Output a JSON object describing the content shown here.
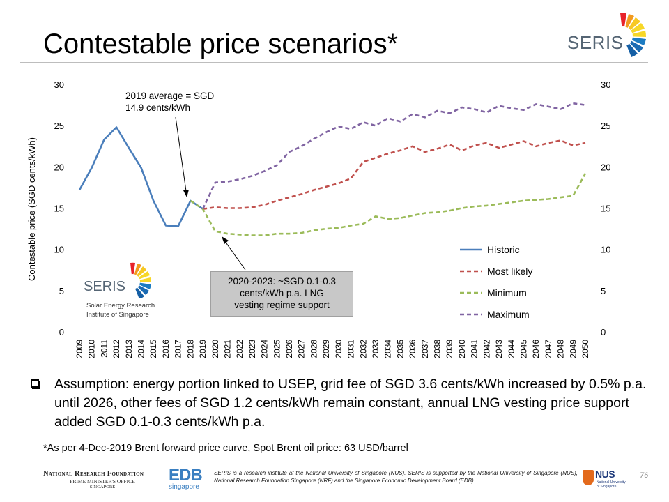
{
  "slide": {
    "title": "Contestable price scenarios*",
    "logo_text": "SERIS",
    "page_number": "76"
  },
  "inset_logo": {
    "name": "SERIS",
    "line1": "Solar Energy Research",
    "line2": "Institute of Singapore"
  },
  "annotations": {
    "top_line1": "2019 average =  SGD",
    "top_line2": "14.9 cents/kWh",
    "box_line1": "2020-2023: ~SGD 0.1-0.3",
    "box_line2": "cents/kWh p.a. LNG",
    "box_line3": "vesting regime support"
  },
  "bullet": {
    "text": "Assumption: energy portion linked to USEP, grid fee of SGD 3.6 cents/kWh increased by 0.5% p.a. until 2026, other fees of SGD 1.2 cents/kWh remain constant, annual LNG vesting price support added SGD 0.1-0.3 cents/kWh p.a."
  },
  "footnote": "*As per 4-Dec-2019 Brent forward price curve, Spot Brent oil price: 63 USD/barrel",
  "footer": {
    "nrf_line1": "National Research Foundation",
    "nrf_line2": "PRIME MINISTER'S OFFICE",
    "nrf_line3": "SINGAPORE",
    "edb_line1": "EDB",
    "edb_line2": "singapore",
    "text": "SERIS is a research institute at the National University of Singapore (NUS). SERIS is supported by the National University of Singapore (NUS), National Research Foundation Singapore (NRF) and the Singapore Economic Development Board (EDB).",
    "nus_name": "NUS",
    "nus_sub1": "National University",
    "nus_sub2": "of Singapore"
  },
  "colors": {
    "historic": "#4a7ebb",
    "most_likely": "#c0504d",
    "minimum": "#9bbb59",
    "maximum": "#8064a2",
    "annotation_box": "#c8c8c8"
  },
  "chart_data": {
    "type": "line",
    "title": "",
    "xlabel": "",
    "ylabel": "Contestable price (SGD cents/kWh)",
    "ylim": [
      0,
      30
    ],
    "yticks": [
      0,
      5,
      10,
      15,
      20,
      25,
      30
    ],
    "secondary_yticks": [
      "0",
      "5",
      "10",
      "15",
      "20",
      "25",
      "30"
    ],
    "grid": false,
    "legend_position": "bottom-right",
    "x": [
      2009,
      2010,
      2011,
      2012,
      2013,
      2014,
      2015,
      2016,
      2017,
      2018,
      2019,
      2020,
      2021,
      2022,
      2023,
      2024,
      2025,
      2026,
      2027,
      2028,
      2029,
      2030,
      2031,
      2032,
      2033,
      2034,
      2035,
      2036,
      2037,
      2038,
      2039,
      2040,
      2041,
      2042,
      2043,
      2044,
      2045,
      2046,
      2047,
      2048,
      2049,
      2050
    ],
    "series": [
      {
        "name": "Historic",
        "style": "solid",
        "x": [
          2009,
          2010,
          2011,
          2012,
          2013,
          2014,
          2015,
          2016,
          2017,
          2018,
          2019
        ],
        "values": [
          17.2,
          19.9,
          23.3,
          24.8,
          22.3,
          19.9,
          15.9,
          12.9,
          12.8,
          15.9,
          14.9
        ]
      },
      {
        "name": "Most likely",
        "style": "dashed",
        "x": [
          2019,
          2020,
          2021,
          2022,
          2023,
          2024,
          2025,
          2026,
          2027,
          2028,
          2029,
          2030,
          2031,
          2032,
          2033,
          2034,
          2035,
          2036,
          2037,
          2038,
          2039,
          2040,
          2041,
          2042,
          2043,
          2044,
          2045,
          2046,
          2047,
          2048,
          2049,
          2050
        ],
        "values": [
          14.9,
          15.1,
          15.0,
          15.0,
          15.1,
          15.4,
          15.9,
          16.3,
          16.7,
          17.2,
          17.6,
          18.0,
          18.6,
          20.6,
          21.1,
          21.6,
          22.0,
          22.5,
          21.8,
          22.2,
          22.7,
          22.0,
          22.6,
          22.9,
          22.3,
          22.7,
          23.1,
          22.5,
          22.9,
          23.2,
          22.6,
          22.9
        ]
      },
      {
        "name": "Minimum",
        "style": "dashed",
        "x": [
          2018,
          2019,
          2020,
          2021,
          2022,
          2023,
          2024,
          2025,
          2026,
          2027,
          2028,
          2029,
          2030,
          2031,
          2032,
          2033,
          2034,
          2035,
          2036,
          2037,
          2038,
          2039,
          2040,
          2041,
          2042,
          2043,
          2044,
          2045,
          2046,
          2047,
          2048,
          2049,
          2050
        ],
        "values": [
          15.9,
          14.9,
          12.2,
          11.9,
          11.8,
          11.7,
          11.7,
          11.9,
          11.9,
          12.0,
          12.3,
          12.5,
          12.6,
          12.9,
          13.1,
          14.0,
          13.7,
          13.8,
          14.1,
          14.4,
          14.5,
          14.7,
          15.0,
          15.2,
          15.3,
          15.5,
          15.7,
          15.9,
          16.0,
          16.1,
          16.3,
          16.5,
          19.2
        ]
      },
      {
        "name": "Maximum",
        "style": "dashed",
        "x": [
          2019,
          2020,
          2021,
          2022,
          2023,
          2024,
          2025,
          2026,
          2027,
          2028,
          2029,
          2030,
          2031,
          2032,
          2033,
          2034,
          2035,
          2036,
          2037,
          2038,
          2039,
          2040,
          2041,
          2042,
          2043,
          2044,
          2045,
          2046,
          2047,
          2048,
          2049,
          2050
        ],
        "values": [
          14.9,
          18.1,
          18.2,
          18.5,
          18.9,
          19.5,
          20.2,
          21.8,
          22.5,
          23.4,
          24.2,
          24.9,
          24.6,
          25.4,
          25.0,
          25.9,
          25.5,
          26.4,
          26.0,
          26.8,
          26.5,
          27.2,
          27.0,
          26.6,
          27.4,
          27.1,
          26.9,
          27.6,
          27.3,
          27.0,
          27.7,
          27.5
        ]
      }
    ]
  }
}
